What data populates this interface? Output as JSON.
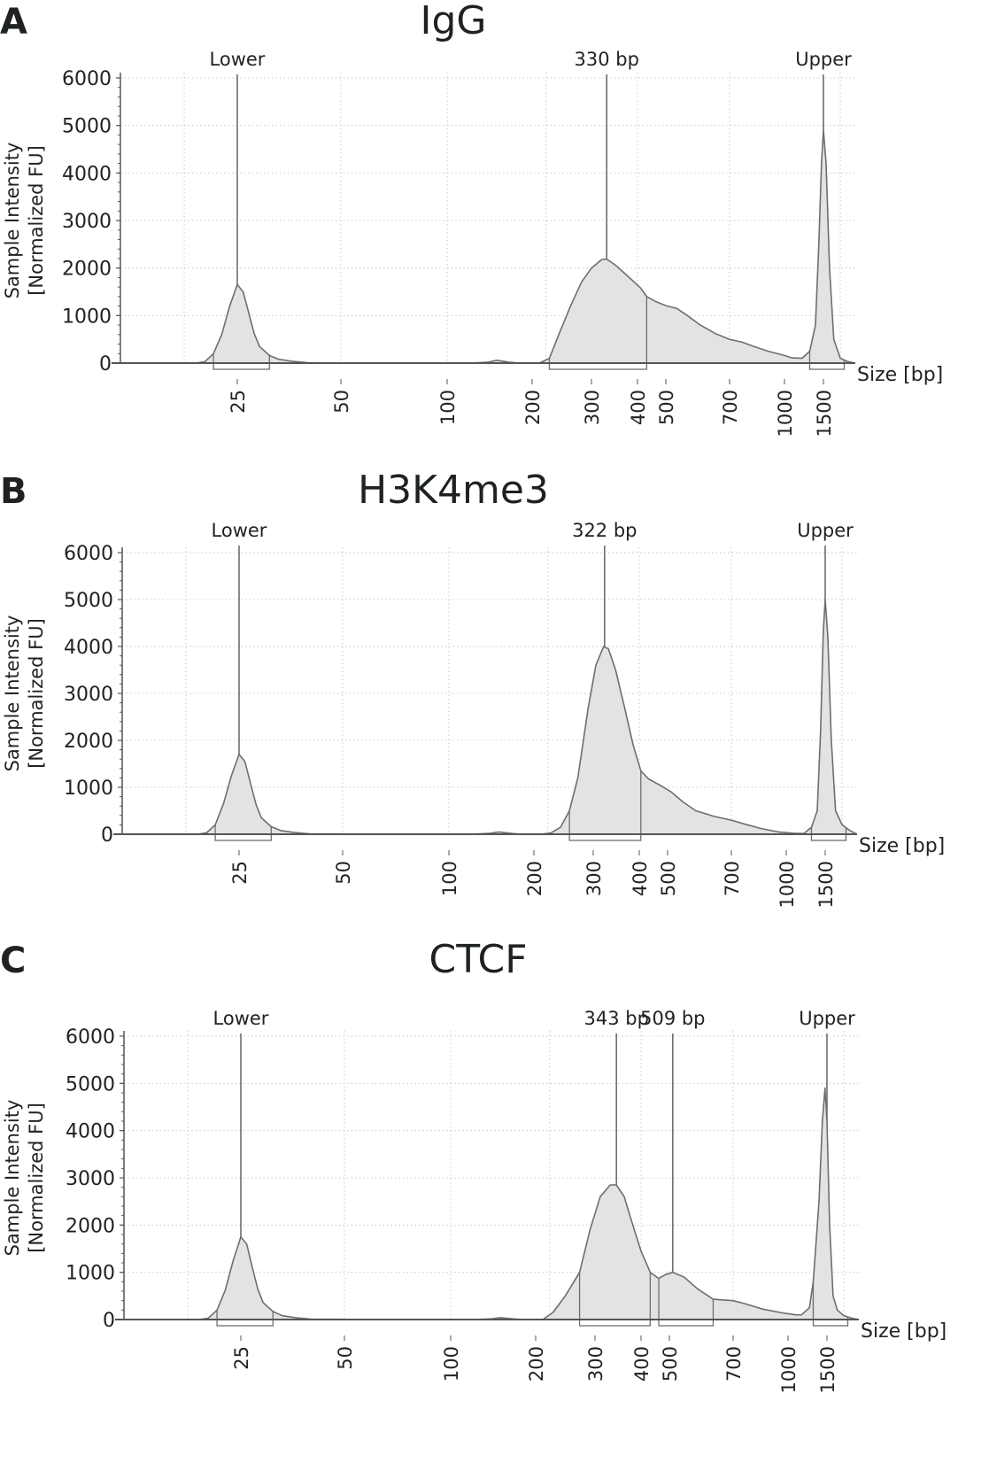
{
  "colors": {
    "trace": "#6e6e6e",
    "fill": "#e2e3e2",
    "grid": "#c8c8c8",
    "axis": "#555555",
    "text": "#222222"
  },
  "chart_data": [
    {
      "type": "area",
      "panel": "A",
      "title": "IgG",
      "ylabel_line1": "Sample Intensity",
      "ylabel_line2": "[Normalized FU]",
      "xlabel": "Size [bp]",
      "ylim": [
        0,
        6000
      ],
      "yticks": [
        "0",
        "1000",
        "2000",
        "3000",
        "4000",
        "5000",
        "6000"
      ],
      "xticks": [
        "25",
        "50",
        "100",
        "200",
        "300",
        "400",
        "500",
        "700",
        "1000",
        "1500"
      ],
      "grid": true,
      "peak_labels": [
        {
          "label": "Lower",
          "x": 25
        },
        {
          "label": "330 bp",
          "x": 330
        },
        {
          "label": "Upper",
          "x": 1500
        }
      ],
      "regions": [
        [
          22,
          31
        ],
        [
          225,
          430
        ],
        [
          1300,
          1750
        ]
      ],
      "series": {
        "x": [
          10,
          20,
          21,
          22,
          23,
          24,
          25,
          26,
          27,
          28,
          29,
          31,
          33,
          36,
          40,
          60,
          120,
          140,
          150,
          165,
          180,
          210,
          225,
          240,
          260,
          280,
          300,
          320,
          330,
          350,
          380,
          410,
          430,
          460,
          500,
          530,
          560,
          600,
          650,
          700,
          760,
          820,
          900,
          1000,
          1080,
          1200,
          1300,
          1380,
          1430,
          1470,
          1500,
          1530,
          1570,
          1620,
          1700,
          1800,
          1900
        ],
        "y": [
          0,
          0,
          30,
          200,
          600,
          1200,
          1650,
          1500,
          1050,
          620,
          350,
          160,
          80,
          40,
          10,
          0,
          0,
          20,
          60,
          20,
          0,
          0,
          100,
          600,
          1200,
          1700,
          2000,
          2180,
          2190,
          2050,
          1800,
          1580,
          1400,
          1300,
          1210,
          1150,
          1000,
          800,
          620,
          500,
          440,
          350,
          250,
          160,
          110,
          100,
          250,
          800,
          2500,
          4200,
          4900,
          4200,
          2000,
          500,
          100,
          30,
          0
        ]
      }
    },
    {
      "type": "area",
      "panel": "B",
      "title": "H3K4me3",
      "ylabel_line1": "Sample Intensity",
      "ylabel_line2": "[Normalized FU]",
      "xlabel": "Size [bp]",
      "ylim": [
        0,
        6000
      ],
      "yticks": [
        "0",
        "1000",
        "2000",
        "3000",
        "4000",
        "5000",
        "6000"
      ],
      "xticks": [
        "25",
        "50",
        "100",
        "200",
        "300",
        "400",
        "500",
        "700",
        "1000",
        "1500"
      ],
      "grid": true,
      "peak_labels": [
        {
          "label": "Lower",
          "x": 25
        },
        {
          "label": "322 bp",
          "x": 322
        },
        {
          "label": "Upper",
          "x": 1500
        }
      ],
      "regions": [
        [
          22,
          31
        ],
        [
          255,
          405
        ],
        [
          1300,
          1750
        ]
      ],
      "series": {
        "x": [
          10,
          20,
          21,
          22,
          23,
          24,
          25,
          26,
          27,
          28,
          29,
          31,
          33,
          36,
          40,
          60,
          120,
          140,
          150,
          165,
          180,
          210,
          225,
          240,
          255,
          270,
          290,
          305,
          320,
          330,
          345,
          365,
          385,
          405,
          430,
          470,
          510,
          540,
          580,
          640,
          700,
          760,
          850,
          950,
          1080,
          1200,
          1300,
          1380,
          1430,
          1470,
          1500,
          1530,
          1570,
          1620,
          1700,
          1800,
          1900
        ],
        "y": [
          0,
          0,
          30,
          200,
          650,
          1250,
          1700,
          1550,
          1080,
          640,
          350,
          160,
          80,
          40,
          10,
          0,
          0,
          20,
          50,
          20,
          0,
          0,
          30,
          150,
          500,
          1200,
          2700,
          3600,
          4000,
          3950,
          3500,
          2700,
          1900,
          1350,
          1180,
          1050,
          900,
          700,
          500,
          380,
          300,
          220,
          120,
          50,
          20,
          15,
          150,
          500,
          2200,
          4300,
          5000,
          4200,
          2000,
          500,
          200,
          80,
          0
        ]
      }
    },
    {
      "type": "area",
      "panel": "C",
      "title": "CTCF",
      "ylabel_line1": "Sample Intensity",
      "ylabel_line2": "[Normalized FU]",
      "xlabel": "Size [bp]",
      "ylim": [
        0,
        6000
      ],
      "yticks": [
        "0",
        "1000",
        "2000",
        "3000",
        "4000",
        "5000",
        "6000"
      ],
      "xticks": [
        "25",
        "50",
        "100",
        "200",
        "300",
        "400",
        "500",
        "700",
        "1000",
        "1500"
      ],
      "grid": true,
      "peak_labels": [
        {
          "label": "Lower",
          "x": 25
        },
        {
          "label": "343 bp",
          "x": 343
        },
        {
          "label": "509 bp",
          "x": 509
        },
        {
          "label": "Upper",
          "x": 1500
        }
      ],
      "regions": [
        [
          22,
          31
        ],
        [
          270,
          430
        ],
        [
          460,
          630
        ],
        [
          1300,
          1750
        ]
      ],
      "series": {
        "x": [
          10,
          20,
          21,
          22,
          23,
          24,
          25,
          26,
          27,
          28,
          29,
          31,
          33,
          36,
          40,
          60,
          120,
          140,
          150,
          165,
          180,
          210,
          225,
          245,
          270,
          290,
          310,
          330,
          343,
          360,
          380,
          400,
          430,
          460,
          485,
          509,
          540,
          580,
          630,
          700,
          760,
          850,
          950,
          1080,
          1150,
          1250,
          1300,
          1380,
          1430,
          1470,
          1500,
          1530,
          1570,
          1620,
          1700,
          1800,
          1900
        ],
        "y": [
          0,
          0,
          30,
          200,
          620,
          1250,
          1750,
          1600,
          1100,
          650,
          360,
          170,
          80,
          40,
          10,
          0,
          0,
          15,
          40,
          15,
          0,
          0,
          150,
          500,
          1000,
          1900,
          2600,
          2850,
          2850,
          2600,
          2000,
          1450,
          1000,
          870,
          950,
          1000,
          900,
          650,
          430,
          400,
          330,
          220,
          150,
          100,
          100,
          250,
          800,
          2500,
          4200,
          4900,
          4200,
          2000,
          500,
          200,
          80,
          30,
          0
        ]
      }
    }
  ]
}
